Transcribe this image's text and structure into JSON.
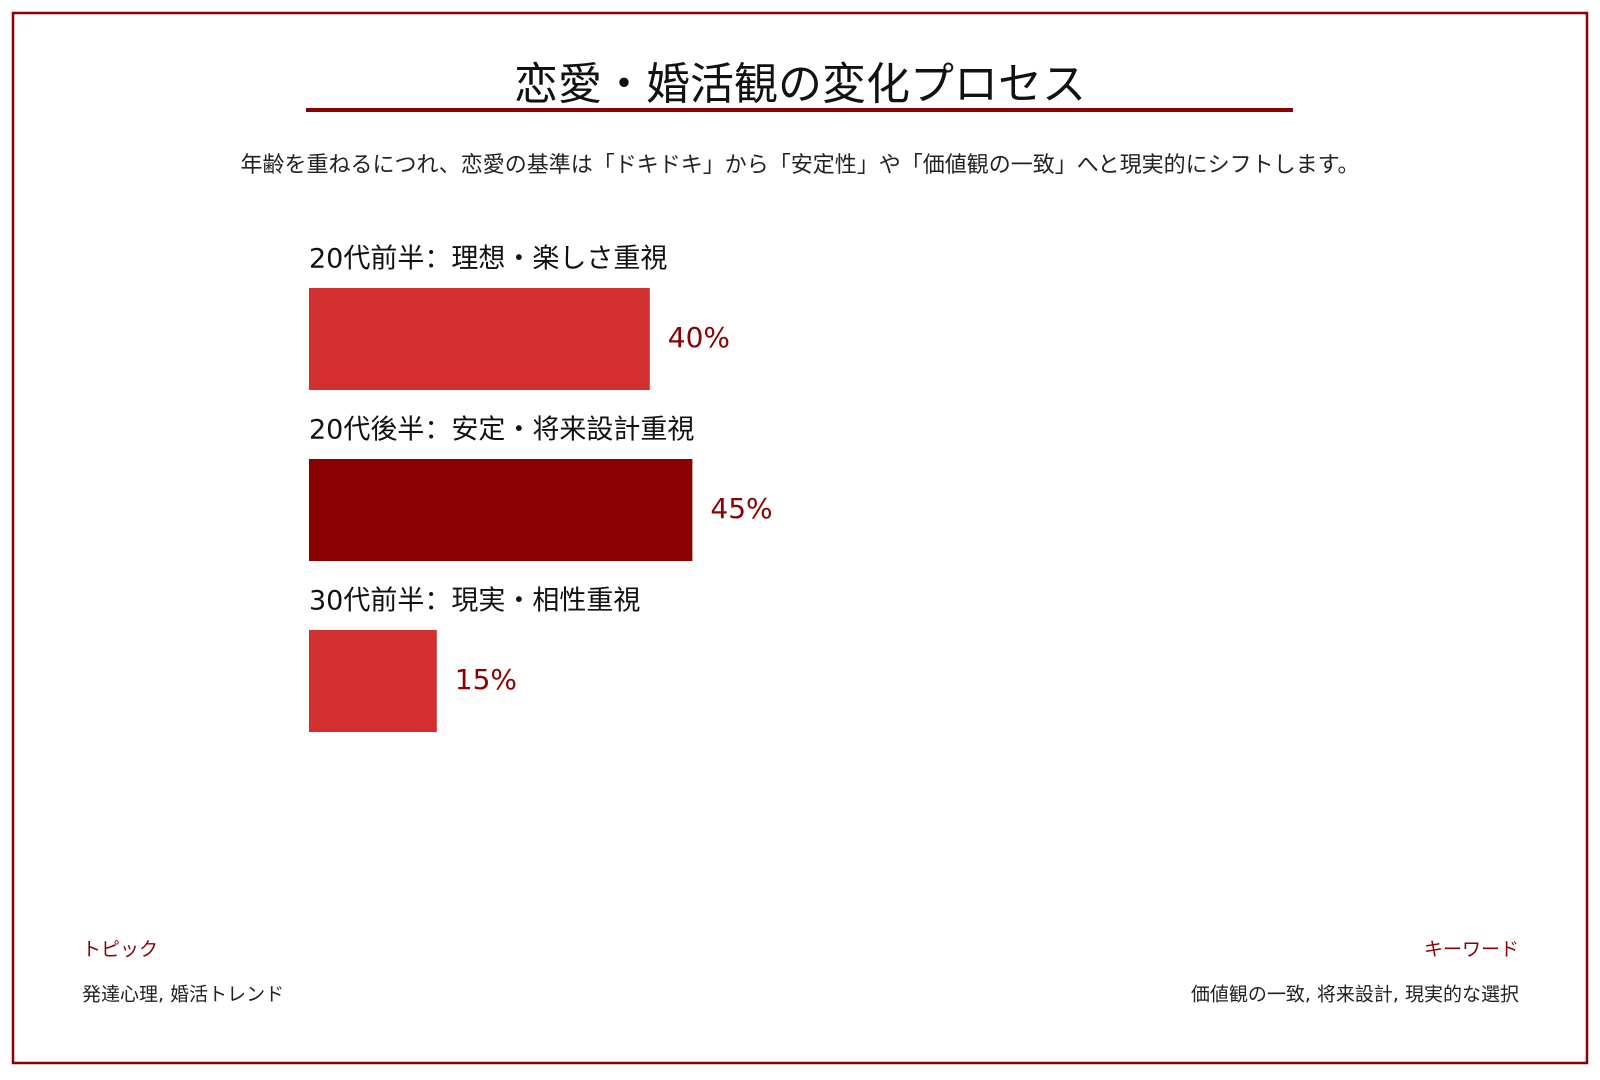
{
  "chart_data": {
    "type": "bar",
    "title": "恋愛・婚活観の変化プロセス",
    "subtitle": "年齢を重ねるにつれ、恋愛の基準は「ドキドキ」から「安定性」や「価値観の一致」へと現実的にシフトします。",
    "categories": [
      "20代前半：理想・楽しさ重視",
      "20代後半：安定・将来設計重視",
      "30代前半：現実・相性重視"
    ],
    "values": [
      40,
      45,
      15
    ],
    "value_labels": [
      "40%",
      "45%",
      "15%"
    ],
    "colors": [
      "#d32f2f",
      "#8b0000",
      "#d32f2f"
    ]
  },
  "footer": {
    "topic_label": "トピック",
    "topic": "発達心理, 婚活トレンド",
    "keyword_label": "キーワード",
    "keywords": "価値観の一致, 将来設計, 現実的な選択"
  }
}
